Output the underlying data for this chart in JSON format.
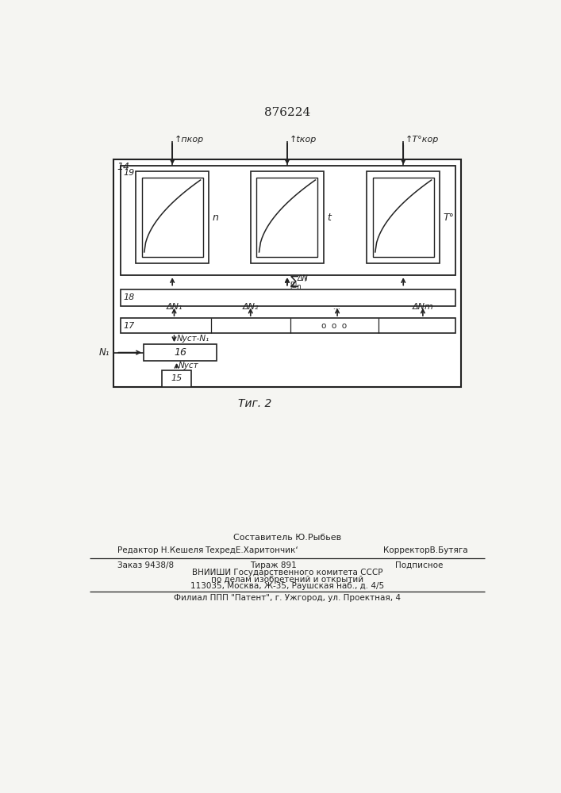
{
  "patent_number": "876224",
  "fig_label": "Τиг. 2",
  "bg_color": "#f5f5f2",
  "line_color": "#222222",
  "label_14": "14",
  "label_19": "19",
  "label_17": "17",
  "label_18": "18",
  "label_16": "16",
  "label_15": "15",
  "n_label": "n",
  "t_label": "t",
  "T_label": "T°",
  "n_kor_label": "↑пкор",
  "t_kor_label": "↑tкор",
  "T_kor_label": "↑T°кор",
  "N1_label": "N₁",
  "Nust_label": "Nуст",
  "Nust_N1_label": "Nуст-N₁",
  "dN1_label": "ΔN₁",
  "dN2_label": "ΔN₂",
  "dNm_label": "ΔNm",
  "dots_label": "...",
  "dots2_label": "o  o  o",
  "footer_sostavitel": "Составитель Ю.Рыбьев",
  "footer_editor": "Редактор Н.Кешеля",
  "footer_tech": "ТехредЕ.Харитончик‘",
  "footer_corrector": "КорректорВ.Бутяга",
  "footer_order": "Заказ 9438/8",
  "footer_tirazh": "Тираж 891",
  "footer_podp": "Подписное",
  "footer_vniishi": "ВНИИШИ Государственного комитета СССР",
  "footer_po": "по делам изобретений и открытий",
  "footer_addr": "113035, Москва, Ж-35, Раушская наб., д. 4/5",
  "footer_filial": "Филиал ППП \"Патент\", г. Ужгород, ул. Проектная, 4"
}
